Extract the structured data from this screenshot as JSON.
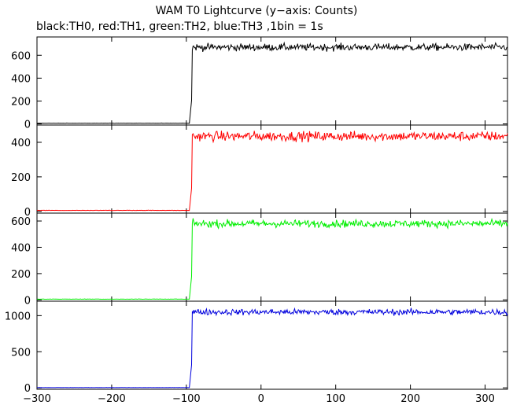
{
  "chart_data": {
    "type": "line",
    "title": "WAM T0 Lightcurve (y−axis: Counts)",
    "subtitle": "black:TH0, red:TH1, green:TH2, blue:TH3 ,1bin = 1s",
    "xlim": [
      -300,
      330
    ],
    "x_ticks": [
      -300,
      -200,
      -100,
      0,
      100,
      200,
      300
    ],
    "x_tick_labels": [
      "−300",
      "−200",
      "−100",
      "0",
      "100",
      "200",
      "300"
    ],
    "grid": false,
    "panels": [
      {
        "series": "TH0",
        "color": "#000000",
        "ylim": [
          -10,
          760
        ],
        "y_ticks": [
          0,
          200,
          400,
          600
        ],
        "pre_level": 5,
        "post_level": 670,
        "noise": 22,
        "step_start": -96,
        "step_end": -92
      },
      {
        "series": "TH1",
        "color": "#ff0000",
        "ylim": [
          -10,
          500
        ],
        "y_ticks": [
          0,
          200,
          400
        ],
        "pre_level": 5,
        "post_level": 435,
        "noise": 20,
        "step_start": -96,
        "step_end": -92
      },
      {
        "series": "TH2",
        "color": "#00ee00",
        "ylim": [
          -10,
          660
        ],
        "y_ticks": [
          0,
          200,
          400,
          600
        ],
        "pre_level": 5,
        "post_level": 580,
        "noise": 20,
        "step_start": -96,
        "step_end": -92
      },
      {
        "series": "TH3",
        "color": "#0000dd",
        "ylim": [
          -20,
          1200
        ],
        "y_ticks": [
          0,
          500,
          1000
        ],
        "pre_level": 3,
        "post_level": 1050,
        "noise": 30,
        "step_start": -96,
        "step_end": -92
      }
    ]
  }
}
